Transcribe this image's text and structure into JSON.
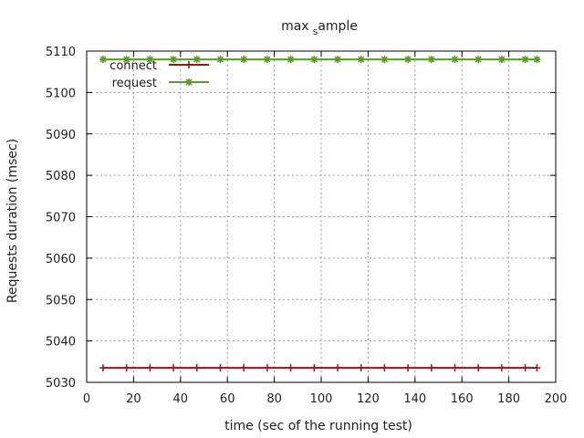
{
  "chart_data": {
    "type": "line",
    "title_main": "max",
    "title_sub": "s",
    "title_rest": "ample",
    "xlabel": "time (sec of the running test)",
    "ylabel": "Requests duration (msec)",
    "xlim": [
      0,
      200
    ],
    "ylim": [
      5030,
      5110
    ],
    "x_ticks": [
      0,
      20,
      40,
      60,
      80,
      100,
      120,
      140,
      160,
      180,
      200
    ],
    "y_ticks": [
      5030,
      5040,
      5050,
      5060,
      5070,
      5080,
      5090,
      5100,
      5110
    ],
    "grid": true,
    "legend_position": "top-left",
    "x": [
      7,
      17,
      27,
      37,
      47,
      57,
      67,
      77,
      87,
      97,
      107,
      117,
      127,
      137,
      147,
      157,
      167,
      177,
      187,
      192
    ],
    "series": [
      {
        "name": "connect",
        "color": "#8b1a1a",
        "marker": "plus",
        "values": [
          5033.5,
          5033.5,
          5033.5,
          5033.5,
          5033.5,
          5033.5,
          5033.5,
          5033.5,
          5033.5,
          5033.5,
          5033.5,
          5033.5,
          5033.5,
          5033.5,
          5033.5,
          5033.5,
          5033.5,
          5033.5,
          5033.5,
          5033.5
        ]
      },
      {
        "name": "request",
        "color": "#5a9a2a",
        "marker": "star",
        "values": [
          5108,
          5108,
          5108,
          5108,
          5108,
          5108,
          5108,
          5108,
          5108,
          5108,
          5108,
          5108,
          5108,
          5108,
          5108,
          5108,
          5108,
          5108,
          5108,
          5108
        ]
      }
    ]
  }
}
